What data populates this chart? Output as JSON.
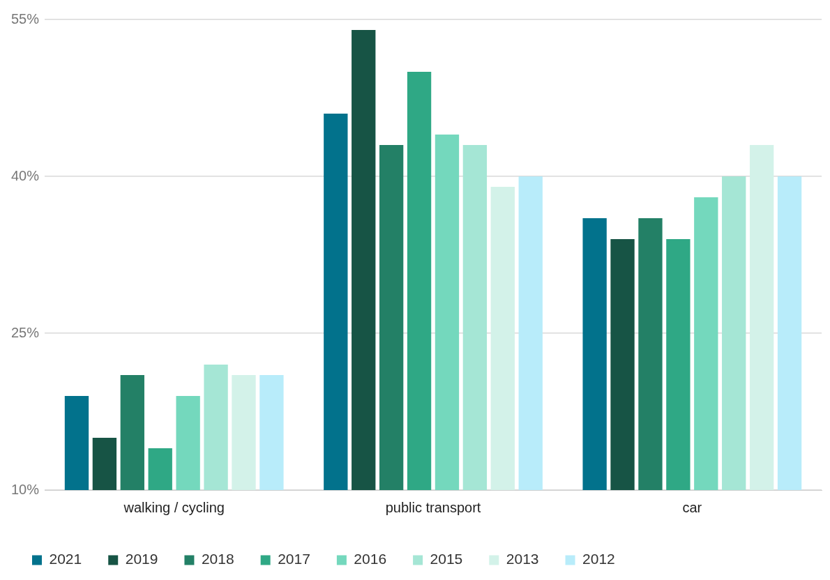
{
  "chart_data": {
    "type": "bar",
    "categories": [
      "walking / cycling",
      "public transport",
      "car"
    ],
    "series": [
      {
        "name": "2021",
        "color": "#02728c",
        "values": [
          19,
          46,
          36
        ]
      },
      {
        "name": "2019",
        "color": "#175445",
        "values": [
          15,
          54,
          34
        ]
      },
      {
        "name": "2018",
        "color": "#238066",
        "values": [
          21,
          43,
          36
        ]
      },
      {
        "name": "2017",
        "color": "#2fa885",
        "values": [
          14,
          50,
          34
        ]
      },
      {
        "name": "2016",
        "color": "#74d8bd",
        "values": [
          19,
          44,
          38
        ]
      },
      {
        "name": "2015",
        "color": "#a5e6d5",
        "values": [
          22,
          43,
          40
        ]
      },
      {
        "name": "2013",
        "color": "#d3f2e9",
        "values": [
          21,
          39,
          43
        ]
      },
      {
        "name": "2012",
        "color": "#b8ecfa",
        "values": [
          21,
          40,
          40
        ]
      }
    ],
    "ylim": [
      10,
      55
    ],
    "yticks": [
      {
        "value": 10,
        "label": "10%"
      },
      {
        "value": 25,
        "label": "25%"
      },
      {
        "value": 40,
        "label": "40%"
      },
      {
        "value": 55,
        "label": "55%"
      }
    ],
    "grid": "y",
    "legend": "bottom"
  }
}
